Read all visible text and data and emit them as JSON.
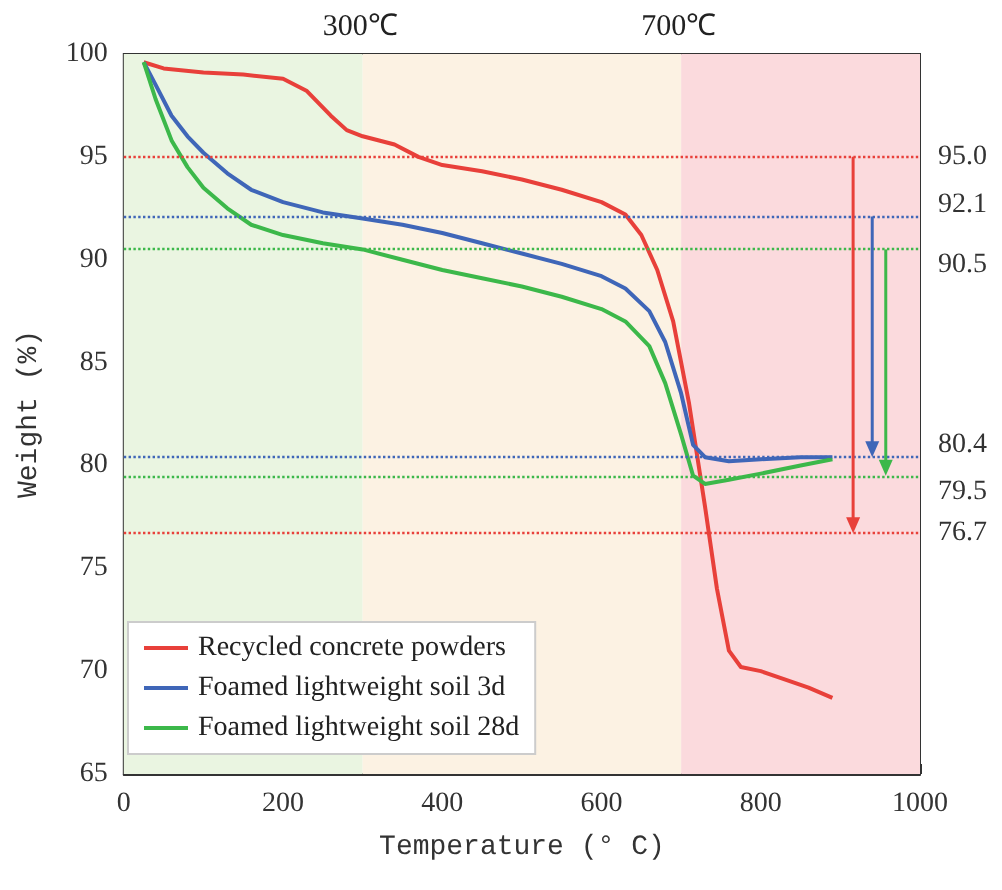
{
  "chart_data": {
    "type": "line",
    "xlabel": "Temperature (° C)",
    "ylabel": "Weight (%)",
    "xlim": [
      0,
      1000
    ],
    "xticks": [
      0,
      200,
      400,
      600,
      800,
      1000
    ],
    "ylim": [
      65,
      100
    ],
    "yticks": [
      65,
      70,
      75,
      80,
      85,
      90,
      95,
      100
    ],
    "grid": false,
    "legend": "bottom left",
    "marker": "none",
    "line_style": "solid",
    "series": [
      {
        "name": "Recycled concrete powders",
        "color": "#e8403a",
        "x": [
          25,
          50,
          100,
          150,
          200,
          230,
          260,
          280,
          300,
          340,
          370,
          400,
          450,
          500,
          550,
          600,
          630,
          650,
          670,
          690,
          710,
          730,
          745,
          760,
          775,
          800,
          830,
          860,
          890
        ],
        "values": [
          99.6,
          99.3,
          99.1,
          99.0,
          98.8,
          98.2,
          97.0,
          96.3,
          96.0,
          95.6,
          95.0,
          94.6,
          94.3,
          93.9,
          93.4,
          92.8,
          92.2,
          91.2,
          89.5,
          87.0,
          83.0,
          78.0,
          74.0,
          71.0,
          70.2,
          70.0,
          69.6,
          69.2,
          68.7
        ]
      },
      {
        "name": "Foamed lightweight soil 3d",
        "color": "#3f66b8",
        "x": [
          25,
          40,
          60,
          80,
          100,
          130,
          160,
          200,
          250,
          300,
          350,
          400,
          450,
          500,
          550,
          600,
          630,
          660,
          680,
          700,
          715,
          730,
          760,
          800,
          850,
          890
        ],
        "values": [
          99.6,
          98.5,
          97.0,
          96.0,
          95.2,
          94.2,
          93.4,
          92.8,
          92.3,
          92.0,
          91.7,
          91.3,
          90.8,
          90.3,
          89.8,
          89.2,
          88.6,
          87.5,
          86.0,
          83.5,
          81.0,
          80.4,
          80.2,
          80.3,
          80.4,
          80.4
        ]
      },
      {
        "name": "Foamed lightweight soil 28d",
        "color": "#3cb84a",
        "x": [
          25,
          40,
          60,
          80,
          100,
          130,
          160,
          200,
          250,
          300,
          350,
          400,
          450,
          500,
          550,
          600,
          630,
          660,
          680,
          700,
          715,
          730,
          760,
          800,
          850,
          890
        ],
        "values": [
          99.6,
          97.8,
          95.8,
          94.5,
          93.5,
          92.5,
          91.7,
          91.2,
          90.8,
          90.5,
          90.0,
          89.5,
          89.1,
          88.7,
          88.2,
          87.6,
          87.0,
          85.8,
          84.0,
          81.5,
          79.5,
          79.1,
          79.3,
          79.6,
          80.0,
          80.3
        ]
      }
    ],
    "bands": [
      {
        "axis": "x",
        "from": 0,
        "to": 300,
        "color": "#eaf5e1"
      },
      {
        "axis": "x",
        "from": 300,
        "to": 700,
        "color": "#fcf2e3"
      },
      {
        "axis": "x",
        "from": 700,
        "to": 1000,
        "color": "#fbdadd"
      }
    ],
    "ref_lines": [
      {
        "axis": "y",
        "value": 95.0,
        "label": "95.0",
        "color": "#e8403a",
        "line_style": "dotted"
      },
      {
        "axis": "y",
        "value": 92.1,
        "label": "92.1",
        "color": "#3f66b8",
        "line_style": "dotted"
      },
      {
        "axis": "y",
        "value": 90.5,
        "label": "90.5",
        "color": "#3cb84a",
        "line_style": "dotted"
      },
      {
        "axis": "y",
        "value": 80.4,
        "label": "80.4",
        "color": "#3f66b8",
        "line_style": "dotted"
      },
      {
        "axis": "y",
        "value": 79.5,
        "label": "79.5",
        "color": "#3cb84a",
        "line_style": "dotted"
      },
      {
        "axis": "y",
        "value": 76.7,
        "label": "76.7",
        "color": "#e8403a",
        "line_style": "dotted"
      }
    ],
    "annotations": [
      "300℃",
      "700℃"
    ]
  }
}
